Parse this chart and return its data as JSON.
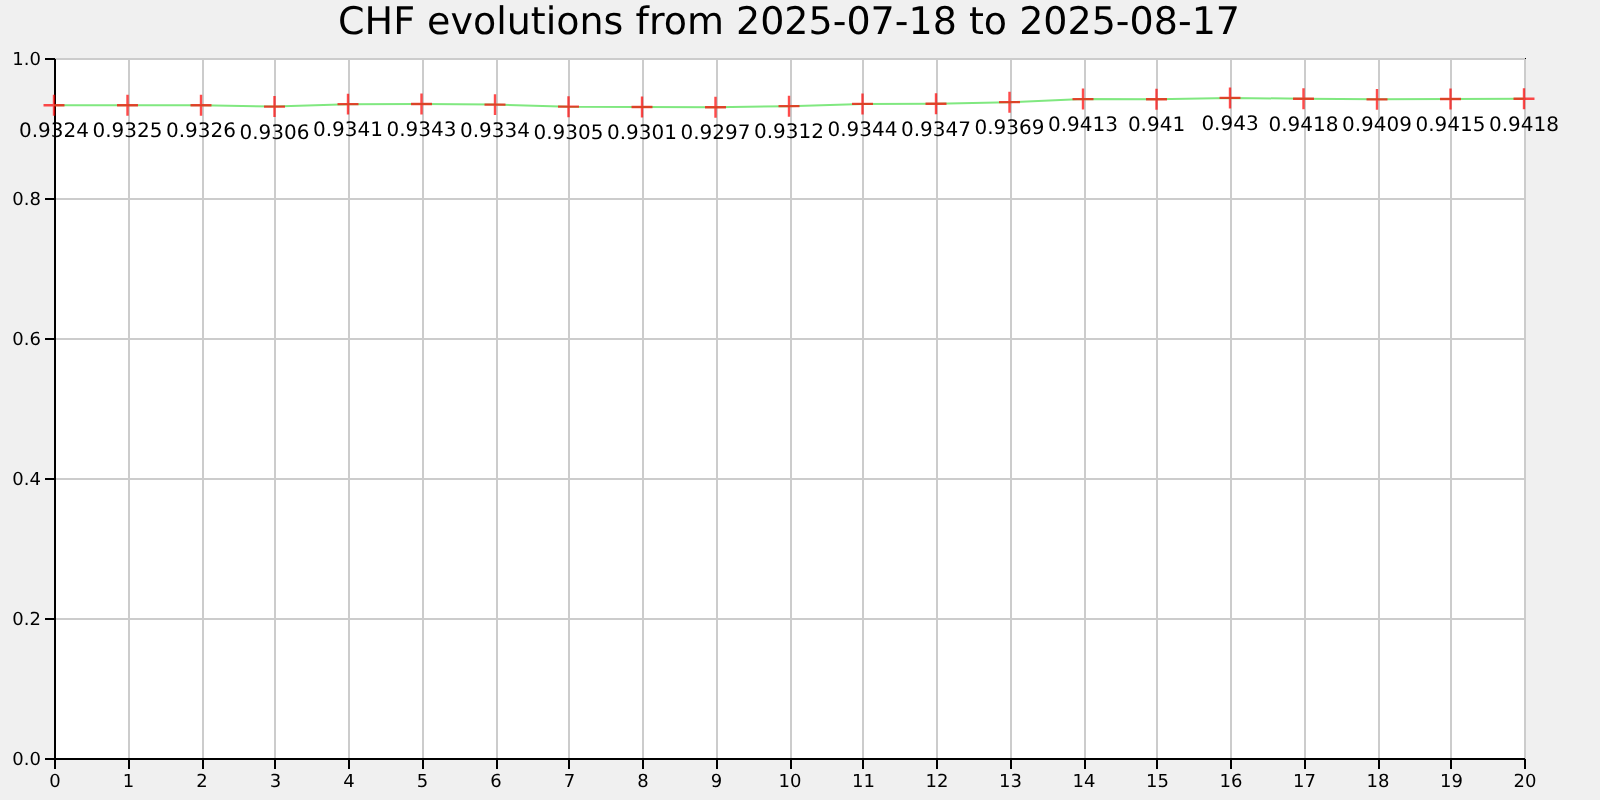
{
  "chart_data": {
    "type": "line",
    "title": "CHF evolutions from 2025-07-18 to 2025-08-17",
    "x": [
      0,
      1,
      2,
      3,
      4,
      5,
      6,
      7,
      8,
      9,
      10,
      11,
      12,
      13,
      14,
      15,
      16,
      17,
      18,
      19,
      20
    ],
    "series": [
      {
        "color": "#80e880",
        "values": [
          0.9324,
          0.9325,
          0.9326,
          0.9306,
          0.9341,
          0.9343,
          0.9334,
          0.9305,
          0.9301,
          0.9297,
          0.9312,
          0.9344,
          0.9347,
          0.9369,
          0.9413,
          0.941,
          0.943,
          0.9418,
          0.9409,
          0.9415,
          0.9418
        ]
      }
    ],
    "xlim": [
      0,
      20
    ],
    "xticks": [
      0,
      1,
      2,
      3,
      4,
      5,
      6,
      7,
      8,
      9,
      10,
      11,
      12,
      13,
      14,
      15,
      16,
      17,
      18,
      19,
      20
    ],
    "ylim": [
      0,
      1
    ],
    "yticks": [
      {
        "value": 0,
        "label": "0.0"
      },
      0.2,
      0.4,
      0.6,
      0.8,
      {
        "value": 1,
        "label": "1.0"
      }
    ],
    "grid": true,
    "marker": "cross",
    "line_style": "solid",
    "data_labels": true
  }
}
